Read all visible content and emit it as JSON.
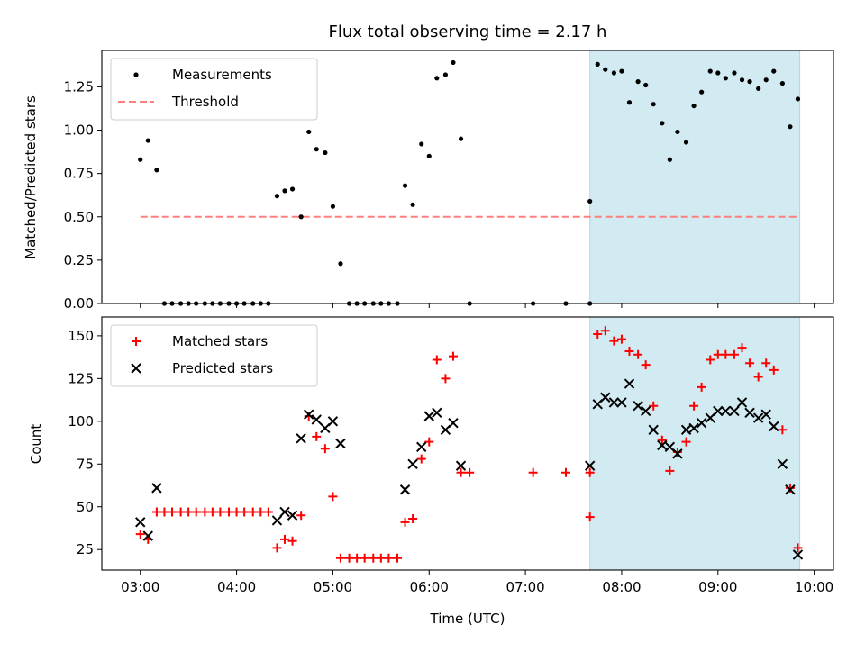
{
  "chart_data": {
    "title": "Flux total observing time = 2.17 h",
    "xlabel": "Time (UTC)",
    "xlim": [
      2.6,
      10.2
    ],
    "x_ticks": [
      {
        "value": 3,
        "label": "03:00"
      },
      {
        "value": 4,
        "label": "04:00"
      },
      {
        "value": 5,
        "label": "05:00"
      },
      {
        "value": 6,
        "label": "06:00"
      },
      {
        "value": 7,
        "label": "07:00"
      },
      {
        "value": 8,
        "label": "08:00"
      },
      {
        "value": 9,
        "label": "09:00"
      },
      {
        "value": 10,
        "label": "10:00"
      }
    ],
    "highlight_span": {
      "x_start": 7.67,
      "x_end": 9.85,
      "color": "#add8e6"
    },
    "panels": [
      {
        "type": "scatter",
        "ylabel": "Matched/Predicted stars",
        "ylim": [
          0,
          1.46
        ],
        "y_ticks": [
          0,
          0.25,
          0.5,
          0.75,
          1.0,
          1.25
        ],
        "y_tick_labels": [
          "0.00",
          "0.25",
          "0.50",
          "0.75",
          "1.00",
          "1.25"
        ],
        "legend": {
          "position": "upper-left",
          "entries": [
            {
              "label": "Measurements",
              "marker": "dot",
              "color": "#000000"
            },
            {
              "label": "Threshold",
              "marker": "dashed-line",
              "color": "#ff7f7f"
            }
          ]
        },
        "threshold": {
          "y": 0.5,
          "x_start": 3.0,
          "x_end": 9.85,
          "color": "#ff7f7f"
        },
        "series": [
          {
            "name": "Measurements",
            "color": "#000000",
            "points": [
              [
                3.0,
                0.83
              ],
              [
                3.08,
                0.94
              ],
              [
                3.17,
                0.77
              ],
              [
                3.25,
                0
              ],
              [
                3.33,
                0
              ],
              [
                3.42,
                0
              ],
              [
                3.5,
                0
              ],
              [
                3.58,
                0
              ],
              [
                3.67,
                0
              ],
              [
                3.75,
                0
              ],
              [
                3.83,
                0
              ],
              [
                3.92,
                0
              ],
              [
                4.0,
                0
              ],
              [
                4.08,
                0
              ],
              [
                4.17,
                0
              ],
              [
                4.25,
                0
              ],
              [
                4.33,
                0
              ],
              [
                4.42,
                0.62
              ],
              [
                4.5,
                0.65
              ],
              [
                4.58,
                0.66
              ],
              [
                4.67,
                0.5
              ],
              [
                4.75,
                0.99
              ],
              [
                4.83,
                0.89
              ],
              [
                4.92,
                0.87
              ],
              [
                5.0,
                0.56
              ],
              [
                5.08,
                0.23
              ],
              [
                5.17,
                0
              ],
              [
                5.25,
                0
              ],
              [
                5.33,
                0
              ],
              [
                5.42,
                0
              ],
              [
                5.5,
                0
              ],
              [
                5.58,
                0
              ],
              [
                5.67,
                0
              ],
              [
                5.75,
                0.68
              ],
              [
                5.83,
                0.57
              ],
              [
                5.92,
                0.92
              ],
              [
                6.0,
                0.85
              ],
              [
                6.08,
                1.3
              ],
              [
                6.17,
                1.32
              ],
              [
                6.25,
                1.39
              ],
              [
                6.33,
                0.95
              ],
              [
                6.42,
                0
              ],
              [
                7.08,
                0
              ],
              [
                7.42,
                0
              ],
              [
                7.67,
                0
              ],
              [
                7.67,
                0.59
              ],
              [
                7.75,
                1.38
              ],
              [
                7.83,
                1.35
              ],
              [
                7.92,
                1.33
              ],
              [
                8.0,
                1.34
              ],
              [
                8.08,
                1.16
              ],
              [
                8.17,
                1.28
              ],
              [
                8.25,
                1.26
              ],
              [
                8.33,
                1.15
              ],
              [
                8.42,
                1.04
              ],
              [
                8.5,
                0.83
              ],
              [
                8.58,
                0.99
              ],
              [
                8.67,
                0.93
              ],
              [
                8.75,
                1.14
              ],
              [
                8.83,
                1.22
              ],
              [
                8.92,
                1.34
              ],
              [
                9.0,
                1.33
              ],
              [
                9.08,
                1.3
              ],
              [
                9.17,
                1.33
              ],
              [
                9.25,
                1.29
              ],
              [
                9.33,
                1.28
              ],
              [
                9.42,
                1.24
              ],
              [
                9.5,
                1.29
              ],
              [
                9.58,
                1.34
              ],
              [
                9.67,
                1.27
              ],
              [
                9.75,
                1.02
              ],
              [
                9.83,
                1.18
              ]
            ]
          }
        ]
      },
      {
        "type": "scatter",
        "ylabel": "Count",
        "ylim": [
          13,
          161
        ],
        "y_ticks": [
          25,
          50,
          75,
          100,
          125,
          150
        ],
        "y_tick_labels": [
          "25",
          "50",
          "75",
          "100",
          "125",
          "150"
        ],
        "legend": {
          "position": "upper-left",
          "entries": [
            {
              "label": "Matched stars",
              "marker": "plus",
              "color": "#ff0000"
            },
            {
              "label": "Predicted stars",
              "marker": "x",
              "color": "#000000"
            }
          ]
        },
        "series": [
          {
            "name": "Matched stars",
            "color": "#ff0000",
            "marker": "plus",
            "points": [
              [
                3.0,
                34
              ],
              [
                3.08,
                31
              ],
              [
                3.17,
                47
              ],
              [
                3.25,
                47
              ],
              [
                3.33,
                47
              ],
              [
                3.42,
                47
              ],
              [
                3.5,
                47
              ],
              [
                3.58,
                47
              ],
              [
                3.67,
                47
              ],
              [
                3.75,
                47
              ],
              [
                3.83,
                47
              ],
              [
                3.92,
                47
              ],
              [
                4.0,
                47
              ],
              [
                4.08,
                47
              ],
              [
                4.17,
                47
              ],
              [
                4.25,
                47
              ],
              [
                4.33,
                47
              ],
              [
                4.42,
                26
              ],
              [
                4.5,
                31
              ],
              [
                4.58,
                30
              ],
              [
                4.67,
                45
              ],
              [
                4.75,
                103
              ],
              [
                4.83,
                91
              ],
              [
                4.92,
                84
              ],
              [
                5.0,
                56
              ],
              [
                5.08,
                20
              ],
              [
                5.17,
                20
              ],
              [
                5.25,
                20
              ],
              [
                5.33,
                20
              ],
              [
                5.42,
                20
              ],
              [
                5.5,
                20
              ],
              [
                5.58,
                20
              ],
              [
                5.67,
                20
              ],
              [
                5.75,
                41
              ],
              [
                5.83,
                43
              ],
              [
                5.92,
                78
              ],
              [
                6.0,
                88
              ],
              [
                6.08,
                136
              ],
              [
                6.17,
                125
              ],
              [
                6.25,
                138
              ],
              [
                6.33,
                70
              ],
              [
                6.42,
                70
              ],
              [
                7.08,
                70
              ],
              [
                7.42,
                70
              ],
              [
                7.67,
                70
              ],
              [
                7.67,
                44
              ],
              [
                7.75,
                151
              ],
              [
                7.83,
                153
              ],
              [
                7.92,
                147
              ],
              [
                8.0,
                148
              ],
              [
                8.08,
                141
              ],
              [
                8.17,
                139
              ],
              [
                8.25,
                133
              ],
              [
                8.33,
                109
              ],
              [
                8.42,
                89
              ],
              [
                8.5,
                71
              ],
              [
                8.58,
                82
              ],
              [
                8.67,
                88
              ],
              [
                8.75,
                109
              ],
              [
                8.83,
                120
              ],
              [
                8.92,
                136
              ],
              [
                9.0,
                139
              ],
              [
                9.08,
                139
              ],
              [
                9.17,
                139
              ],
              [
                9.25,
                143
              ],
              [
                9.33,
                134
              ],
              [
                9.42,
                126
              ],
              [
                9.5,
                134
              ],
              [
                9.58,
                130
              ],
              [
                9.67,
                95
              ],
              [
                9.75,
                61
              ],
              [
                9.83,
                26
              ]
            ]
          },
          {
            "name": "Predicted stars",
            "color": "#000000",
            "marker": "x",
            "points": [
              [
                3.0,
                41
              ],
              [
                3.08,
                33
              ],
              [
                3.17,
                61
              ],
              [
                4.42,
                42
              ],
              [
                4.5,
                47
              ],
              [
                4.58,
                45
              ],
              [
                4.67,
                90
              ],
              [
                4.75,
                104
              ],
              [
                4.83,
                101
              ],
              [
                4.92,
                96
              ],
              [
                5.0,
                100
              ],
              [
                5.08,
                87
              ],
              [
                5.75,
                60
              ],
              [
                5.83,
                75
              ],
              [
                5.92,
                85
              ],
              [
                6.0,
                103
              ],
              [
                6.08,
                105
              ],
              [
                6.17,
                95
              ],
              [
                6.25,
                99
              ],
              [
                6.33,
                74
              ],
              [
                7.67,
                74
              ],
              [
                7.75,
                110
              ],
              [
                7.83,
                114
              ],
              [
                7.92,
                111
              ],
              [
                8.0,
                111
              ],
              [
                8.08,
                122
              ],
              [
                8.17,
                109
              ],
              [
                8.25,
                106
              ],
              [
                8.33,
                95
              ],
              [
                8.42,
                86
              ],
              [
                8.5,
                85
              ],
              [
                8.58,
                81
              ],
              [
                8.67,
                95
              ],
              [
                8.75,
                96
              ],
              [
                8.83,
                99
              ],
              [
                8.92,
                102
              ],
              [
                9.0,
                106
              ],
              [
                9.08,
                106
              ],
              [
                9.17,
                106
              ],
              [
                9.25,
                111
              ],
              [
                9.33,
                105
              ],
              [
                9.42,
                102
              ],
              [
                9.5,
                104
              ],
              [
                9.58,
                97
              ],
              [
                9.67,
                75
              ],
              [
                9.75,
                60
              ],
              [
                9.83,
                22
              ]
            ]
          }
        ]
      }
    ]
  }
}
